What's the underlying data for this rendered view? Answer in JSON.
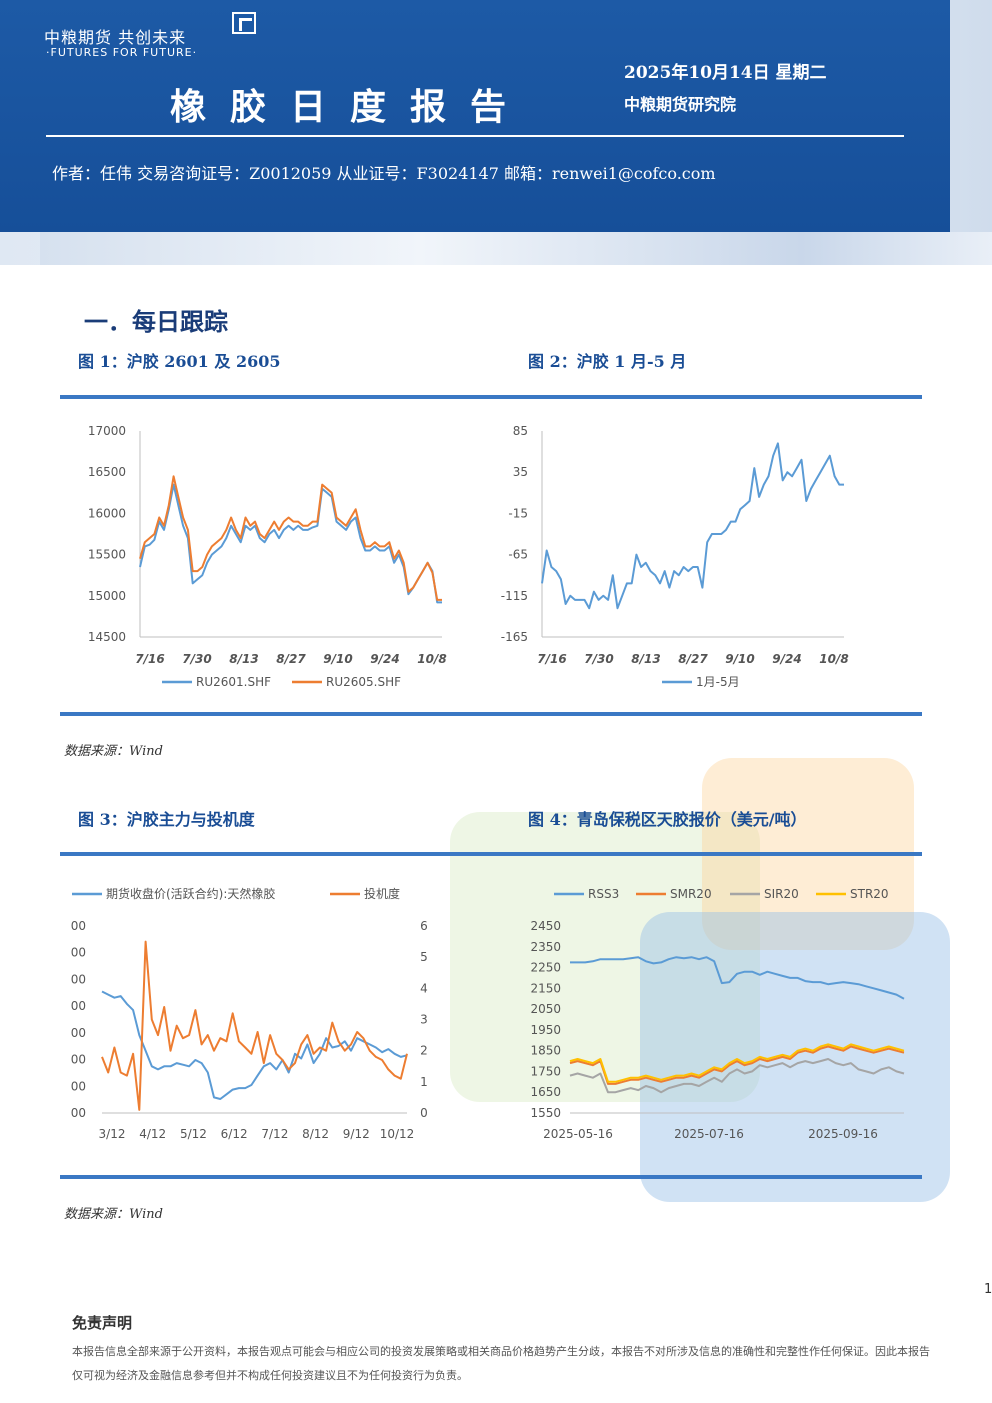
{
  "header": {
    "logo_text": "中粮期货 共创未来",
    "logo_sub": "·FUTURES FOR FUTURE·",
    "title": "橡胶日度报告",
    "date": "2025年10月14日 星期二",
    "org": "中粮期货研究院",
    "author_line": "作者：任伟    交易咨询证号：Z0012059    从业证号：F3024147    邮箱：renwei1@cofco.com"
  },
  "section_title": "一．每日跟踪",
  "figures": {
    "fig1_title": "图 1：沪胶 2601 及 2605",
    "fig2_title": "图 2：沪胶 1 月-5 月",
    "fig3_title": "图 3：沪胶主力与投机度",
    "fig4_title": "图 4：青岛保税区天胶报价（美元/吨）"
  },
  "sources": {
    "source1": "数据来源：Wind",
    "source2": "数据来源：Wind"
  },
  "page_number": "1",
  "disclaimer": {
    "title": "免责声明",
    "text": "本报告信息全部来源于公开资料，本报告观点可能会与相应公司的投资发展策略或相关商品价格趋势产生分歧，本报告不对所涉及信息的准确性和完整性作任何保证。因此本报告仅可视为经济及金融信息参考但并不构成任何投资建议且不为任何投资行为负责。"
  },
  "colors": {
    "header_blue": "#1d5aa6",
    "rule_blue": "#3a78c4",
    "series_blue": "#5b9bd5",
    "series_orange": "#ed7d31",
    "series_gray": "#a5a5a5",
    "series_yellow": "#ffc000"
  },
  "chart_data": [
    {
      "id": "fig1",
      "type": "line",
      "x_ticks": [
        "7/16",
        "7/30",
        "8/13",
        "8/27",
        "9/10",
        "9/24",
        "10/8"
      ],
      "y_ticks": [
        "17000",
        "16500",
        "16000",
        "15500",
        "15000",
        "14500"
      ],
      "ylim": [
        14500,
        17000
      ],
      "series": [
        {
          "name": "RU2601.SHF",
          "color": "#5b9bd5",
          "values": [
            15350,
            15600,
            15620,
            15680,
            15900,
            15800,
            16050,
            16350,
            16100,
            15850,
            15700,
            15150,
            15200,
            15250,
            15400,
            15500,
            15550,
            15600,
            15700,
            15850,
            15750,
            15650,
            15850,
            15800,
            15850,
            15700,
            15650,
            15750,
            15800,
            15700,
            15800,
            15850,
            15800,
            15850,
            15800,
            15800,
            15830,
            15850,
            16300,
            16250,
            16200,
            15900,
            15850,
            15800,
            15900,
            15950,
            15700,
            15550,
            15550,
            15600,
            15550,
            15550,
            15600,
            15400,
            15500,
            15350,
            15020,
            15100,
            15200,
            15300,
            15400,
            15300,
            14920,
            14920
          ]
        },
        {
          "name": "RU2605.SHF",
          "color": "#ed7d31",
          "values": [
            15450,
            15650,
            15700,
            15750,
            15950,
            15850,
            16100,
            16450,
            16200,
            15950,
            15800,
            15300,
            15300,
            15350,
            15500,
            15600,
            15650,
            15700,
            15800,
            15950,
            15800,
            15700,
            15950,
            15850,
            15900,
            15750,
            15700,
            15800,
            15900,
            15800,
            15900,
            15950,
            15900,
            15900,
            15850,
            15850,
            15900,
            15900,
            16350,
            16300,
            16250,
            15950,
            15900,
            15850,
            15950,
            16050,
            15800,
            15600,
            15600,
            15650,
            15600,
            15600,
            15650,
            15450,
            15550,
            15400,
            15050,
            15100,
            15200,
            15300,
            15400,
            15280,
            14950,
            14950
          ]
        }
      ]
    },
    {
      "id": "fig2",
      "type": "line",
      "x_ticks": [
        "7/16",
        "7/30",
        "8/13",
        "8/27",
        "9/10",
        "9/24",
        "10/8"
      ],
      "y_ticks": [
        "85",
        "35",
        "-15",
        "-65",
        "-115",
        "-165"
      ],
      "ylim": [
        -165,
        85
      ],
      "series": [
        {
          "name": "1月-5月",
          "color": "#5b9bd5",
          "values": [
            -100,
            -60,
            -80,
            -85,
            -95,
            -125,
            -115,
            -120,
            -120,
            -120,
            -130,
            -110,
            -120,
            -115,
            -120,
            -90,
            -130,
            -115,
            -100,
            -100,
            -65,
            -80,
            -75,
            -85,
            -90,
            -100,
            -85,
            -105,
            -85,
            -90,
            -80,
            -85,
            -80,
            -80,
            -105,
            -50,
            -40,
            -40,
            -40,
            -35,
            -25,
            -25,
            -10,
            -5,
            0,
            40,
            5,
            20,
            30,
            55,
            70,
            25,
            35,
            30,
            40,
            50,
            0,
            15,
            25,
            35,
            45,
            55,
            30,
            20,
            20
          ]
        }
      ]
    },
    {
      "id": "fig3",
      "type": "line",
      "x_ticks": [
        "3/12",
        "4/12",
        "5/12",
        "6/12",
        "7/12",
        "8/12",
        "9/12",
        "10/12"
      ],
      "y_left_ticks": [
        "00",
        "00",
        "00",
        "00",
        "00",
        "00",
        "00",
        "00"
      ],
      "y_right_ticks": [
        "6",
        "5",
        "4",
        "3",
        "2",
        "1",
        "0"
      ],
      "ylim_right": [
        0,
        6
      ],
      "series": [
        {
          "name": "期货收盘价(活跃合约):天然橡胶",
          "color": "#5b9bd5",
          "values": [
            3.9,
            3.8,
            3.7,
            3.75,
            3.5,
            3.3,
            2.5,
            2.0,
            1.5,
            1.4,
            1.5,
            1.5,
            1.6,
            1.55,
            1.5,
            1.7,
            1.6,
            1.3,
            0.5,
            0.45,
            0.6,
            0.75,
            0.8,
            0.8,
            0.9,
            1.2,
            1.5,
            1.6,
            1.4,
            1.7,
            1.3,
            1.9,
            1.75,
            2.2,
            1.6,
            1.9,
            2.4,
            2.1,
            2.15,
            2.3,
            2.0,
            2.4,
            2.3,
            2.2,
            2.1,
            1.95,
            2.05,
            1.9,
            1.8,
            1.85
          ]
        },
        {
          "name": "投机度",
          "color": "#ed7d31",
          "values": [
            1.8,
            1.3,
            2.1,
            1.3,
            1.2,
            1.9,
            0.1,
            5.5,
            3.0,
            2.5,
            3.4,
            2.0,
            2.8,
            2.4,
            2.5,
            3.3,
            2.2,
            2.5,
            2.0,
            2.4,
            2.3,
            3.2,
            2.3,
            2.1,
            1.9,
            2.6,
            1.6,
            2.5,
            1.9,
            1.7,
            1.4,
            1.6,
            2.2,
            2.5,
            1.9,
            2.1,
            2.0,
            2.9,
            2.3,
            2.0,
            2.2,
            2.6,
            2.4,
            2.0,
            1.8,
            1.7,
            1.4,
            1.2,
            1.1,
            1.9
          ]
        }
      ]
    },
    {
      "id": "fig4",
      "type": "line",
      "x_ticks": [
        "2025-05-16",
        "2025-07-16",
        "2025-09-16"
      ],
      "y_ticks": [
        "2450",
        "2350",
        "2250",
        "2150",
        "2050",
        "1950",
        "1850",
        "1750",
        "1650",
        "1550"
      ],
      "ylim": [
        1550,
        2450
      ],
      "series": [
        {
          "name": "RSS3",
          "color": "#5b9bd5",
          "values": [
            2275,
            2275,
            2275,
            2280,
            2290,
            2290,
            2290,
            2290,
            2295,
            2300,
            2280,
            2270,
            2275,
            2290,
            2300,
            2295,
            2300,
            2290,
            2300,
            2280,
            2175,
            2180,
            2220,
            2230,
            2230,
            2215,
            2230,
            2220,
            2210,
            2200,
            2200,
            2185,
            2180,
            2180,
            2170,
            2175,
            2180,
            2175,
            2170,
            2160,
            2150,
            2140,
            2130,
            2120,
            2100
          ]
        },
        {
          "name": "SMR20",
          "color": "#ed7d31",
          "values": [
            1790,
            1800,
            1790,
            1780,
            1800,
            1690,
            1690,
            1700,
            1710,
            1710,
            1720,
            1710,
            1700,
            1710,
            1720,
            1720,
            1730,
            1720,
            1740,
            1760,
            1750,
            1780,
            1800,
            1780,
            1790,
            1810,
            1800,
            1810,
            1820,
            1810,
            1840,
            1850,
            1840,
            1860,
            1870,
            1860,
            1850,
            1870,
            1860,
            1850,
            1840,
            1850,
            1860,
            1850,
            1840
          ]
        },
        {
          "name": "SIR20",
          "color": "#a5a5a5",
          "values": [
            1730,
            1740,
            1730,
            1720,
            1740,
            1650,
            1650,
            1660,
            1670,
            1660,
            1680,
            1670,
            1650,
            1670,
            1680,
            1690,
            1690,
            1680,
            1700,
            1720,
            1700,
            1740,
            1760,
            1740,
            1750,
            1780,
            1770,
            1780,
            1790,
            1770,
            1790,
            1800,
            1790,
            1800,
            1810,
            1790,
            1780,
            1790,
            1760,
            1750,
            1740,
            1760,
            1770,
            1750,
            1740
          ]
        },
        {
          "name": "STR20",
          "color": "#ffc000",
          "values": [
            1800,
            1810,
            1800,
            1790,
            1810,
            1700,
            1700,
            1710,
            1720,
            1720,
            1730,
            1720,
            1710,
            1720,
            1730,
            1730,
            1740,
            1730,
            1750,
            1770,
            1760,
            1790,
            1810,
            1790,
            1800,
            1820,
            1810,
            1820,
            1830,
            1820,
            1850,
            1860,
            1850,
            1870,
            1880,
            1870,
            1860,
            1880,
            1870,
            1860,
            1850,
            1860,
            1870,
            1860,
            1850
          ]
        }
      ]
    }
  ]
}
